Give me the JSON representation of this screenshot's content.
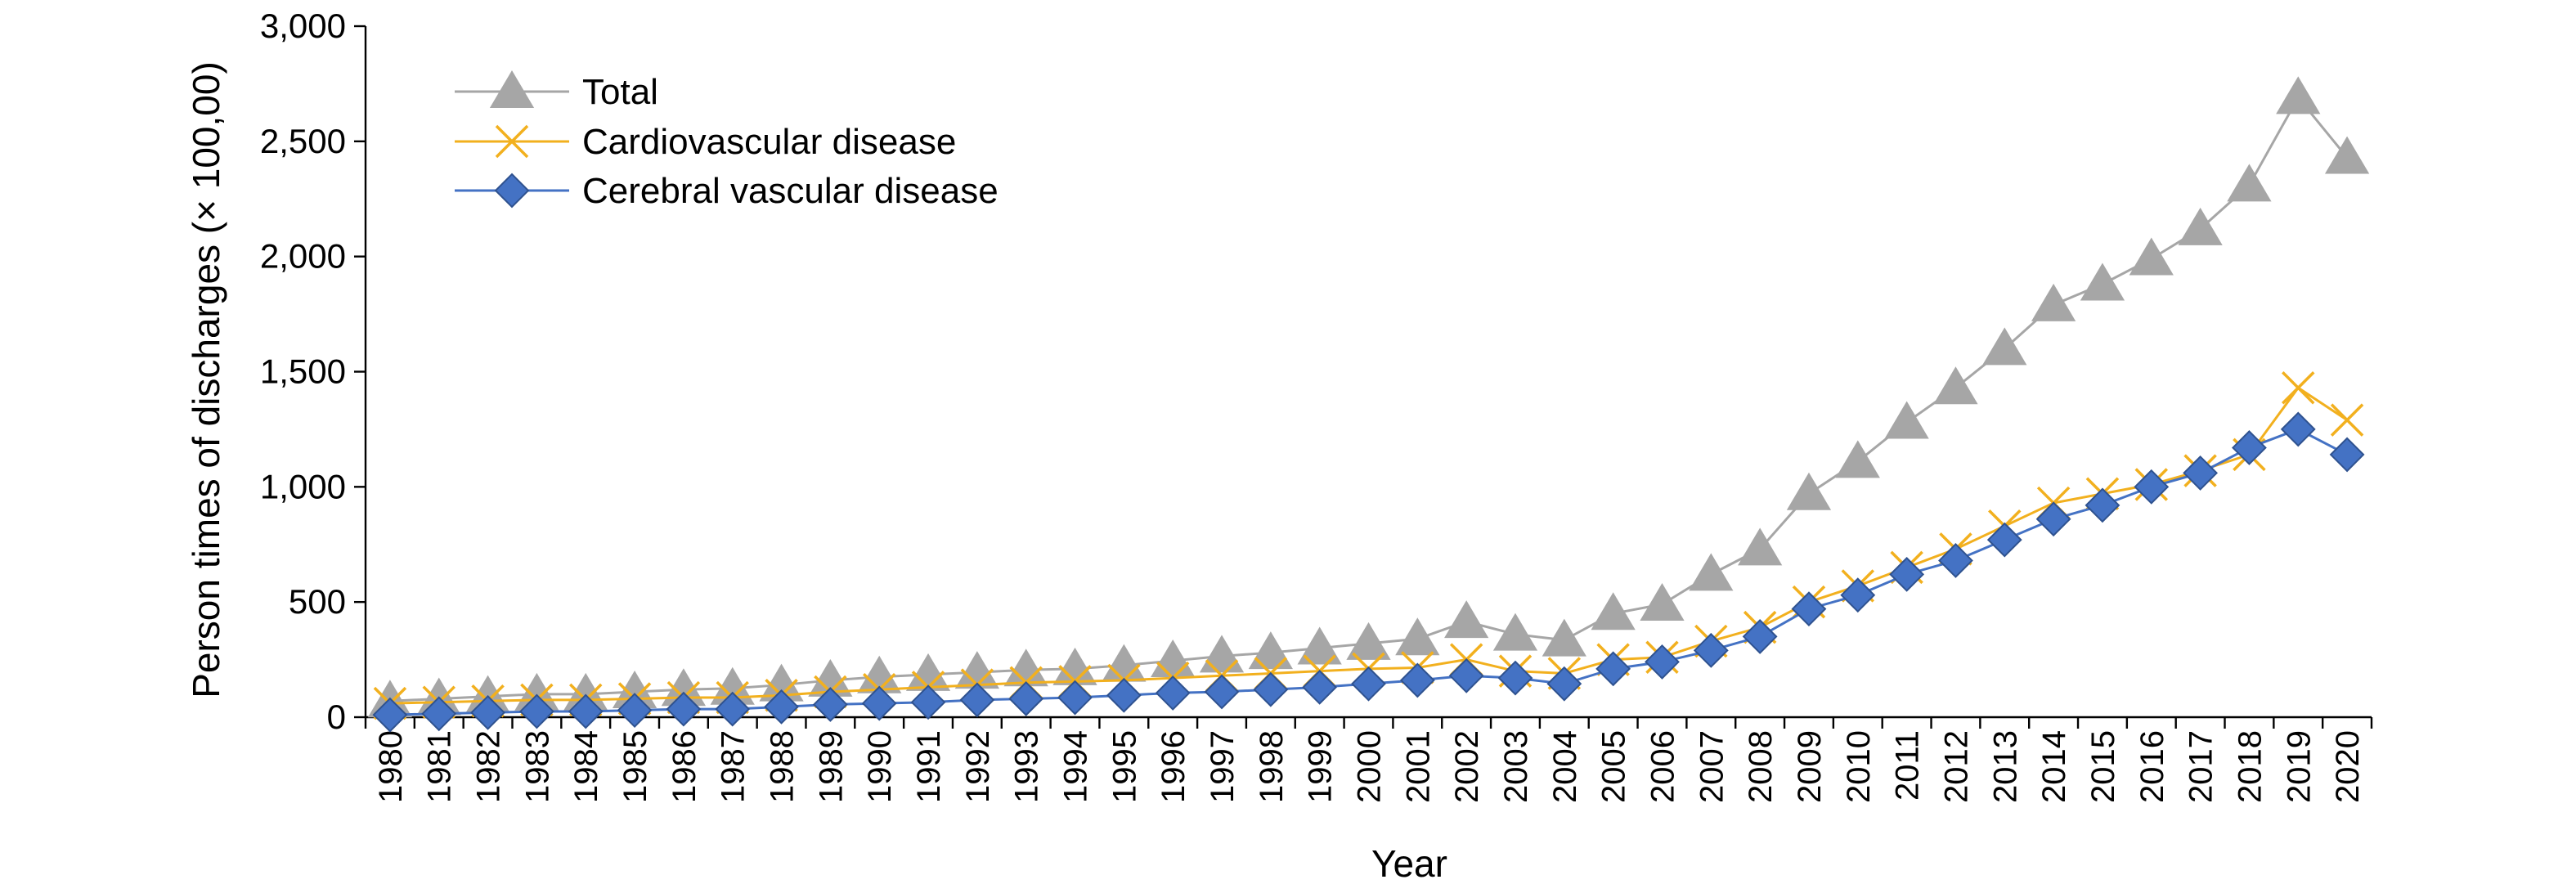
{
  "colors": {
    "total": "#a6a6a6",
    "cardiovascular": "#f2b01e",
    "cerebral": "#4472c4",
    "cerebral_marker_stroke": "#2f528f",
    "axis": "#000000"
  },
  "chart_data": {
    "type": "line",
    "title": "",
    "xlabel": "Year",
    "ylabel": "Person times of discharges (× 100,00)",
    "ylim": [
      0,
      3000
    ],
    "yticks": [
      0,
      500,
      1000,
      1500,
      2000,
      2500,
      3000
    ],
    "ytick_labels": [
      "0",
      "500",
      "1,000",
      "1,500",
      "2,000",
      "2,500",
      "3,000"
    ],
    "grid": false,
    "legend_position": "top-left",
    "categories": [
      "1980",
      "1981",
      "1982",
      "1983",
      "1984",
      "1985",
      "1986",
      "1987",
      "1988",
      "1989",
      "1990",
      "1991",
      "1992",
      "1993",
      "1994",
      "1995",
      "1996",
      "1997",
      "1998",
      "1999",
      "2000",
      "2001",
      "2002",
      "2003",
      "2004",
      "2005",
      "2006",
      "2007",
      "2008",
      "2009",
      "2010",
      "2011",
      "2012",
      "2013",
      "2014",
      "2015",
      "2016",
      "2017",
      "2018",
      "2019",
      "2020"
    ],
    "series": [
      {
        "name": "Total",
        "marker": "triangle",
        "color": "#a6a6a6",
        "values": [
          70,
          80,
          90,
          100,
          100,
          110,
          120,
          125,
          140,
          160,
          175,
          185,
          195,
          205,
          210,
          225,
          245,
          265,
          280,
          300,
          320,
          340,
          415,
          360,
          335,
          450,
          490,
          620,
          730,
          970,
          1110,
          1280,
          1430,
          1600,
          1790,
          1880,
          1990,
          2120,
          2310,
          2690,
          2430
        ]
      },
      {
        "name": "Cardiovascular disease",
        "marker": "x",
        "color": "#f2b01e",
        "values": [
          60,
          65,
          70,
          75,
          75,
          80,
          85,
          85,
          95,
          110,
          120,
          130,
          140,
          150,
          155,
          160,
          170,
          180,
          190,
          200,
          210,
          215,
          250,
          200,
          190,
          250,
          260,
          330,
          390,
          500,
          570,
          650,
          730,
          830,
          930,
          970,
          1010,
          1070,
          1140,
          1430,
          1290
        ]
      },
      {
        "name": "Cerebral vascular disease",
        "marker": "diamond",
        "color": "#4472c4",
        "values": [
          10,
          15,
          20,
          25,
          25,
          30,
          35,
          35,
          45,
          55,
          60,
          65,
          75,
          80,
          85,
          95,
          105,
          110,
          120,
          130,
          145,
          160,
          180,
          170,
          145,
          210,
          240,
          290,
          350,
          470,
          530,
          620,
          680,
          770,
          860,
          920,
          1000,
          1060,
          1170,
          1250,
          1140
        ]
      }
    ]
  }
}
